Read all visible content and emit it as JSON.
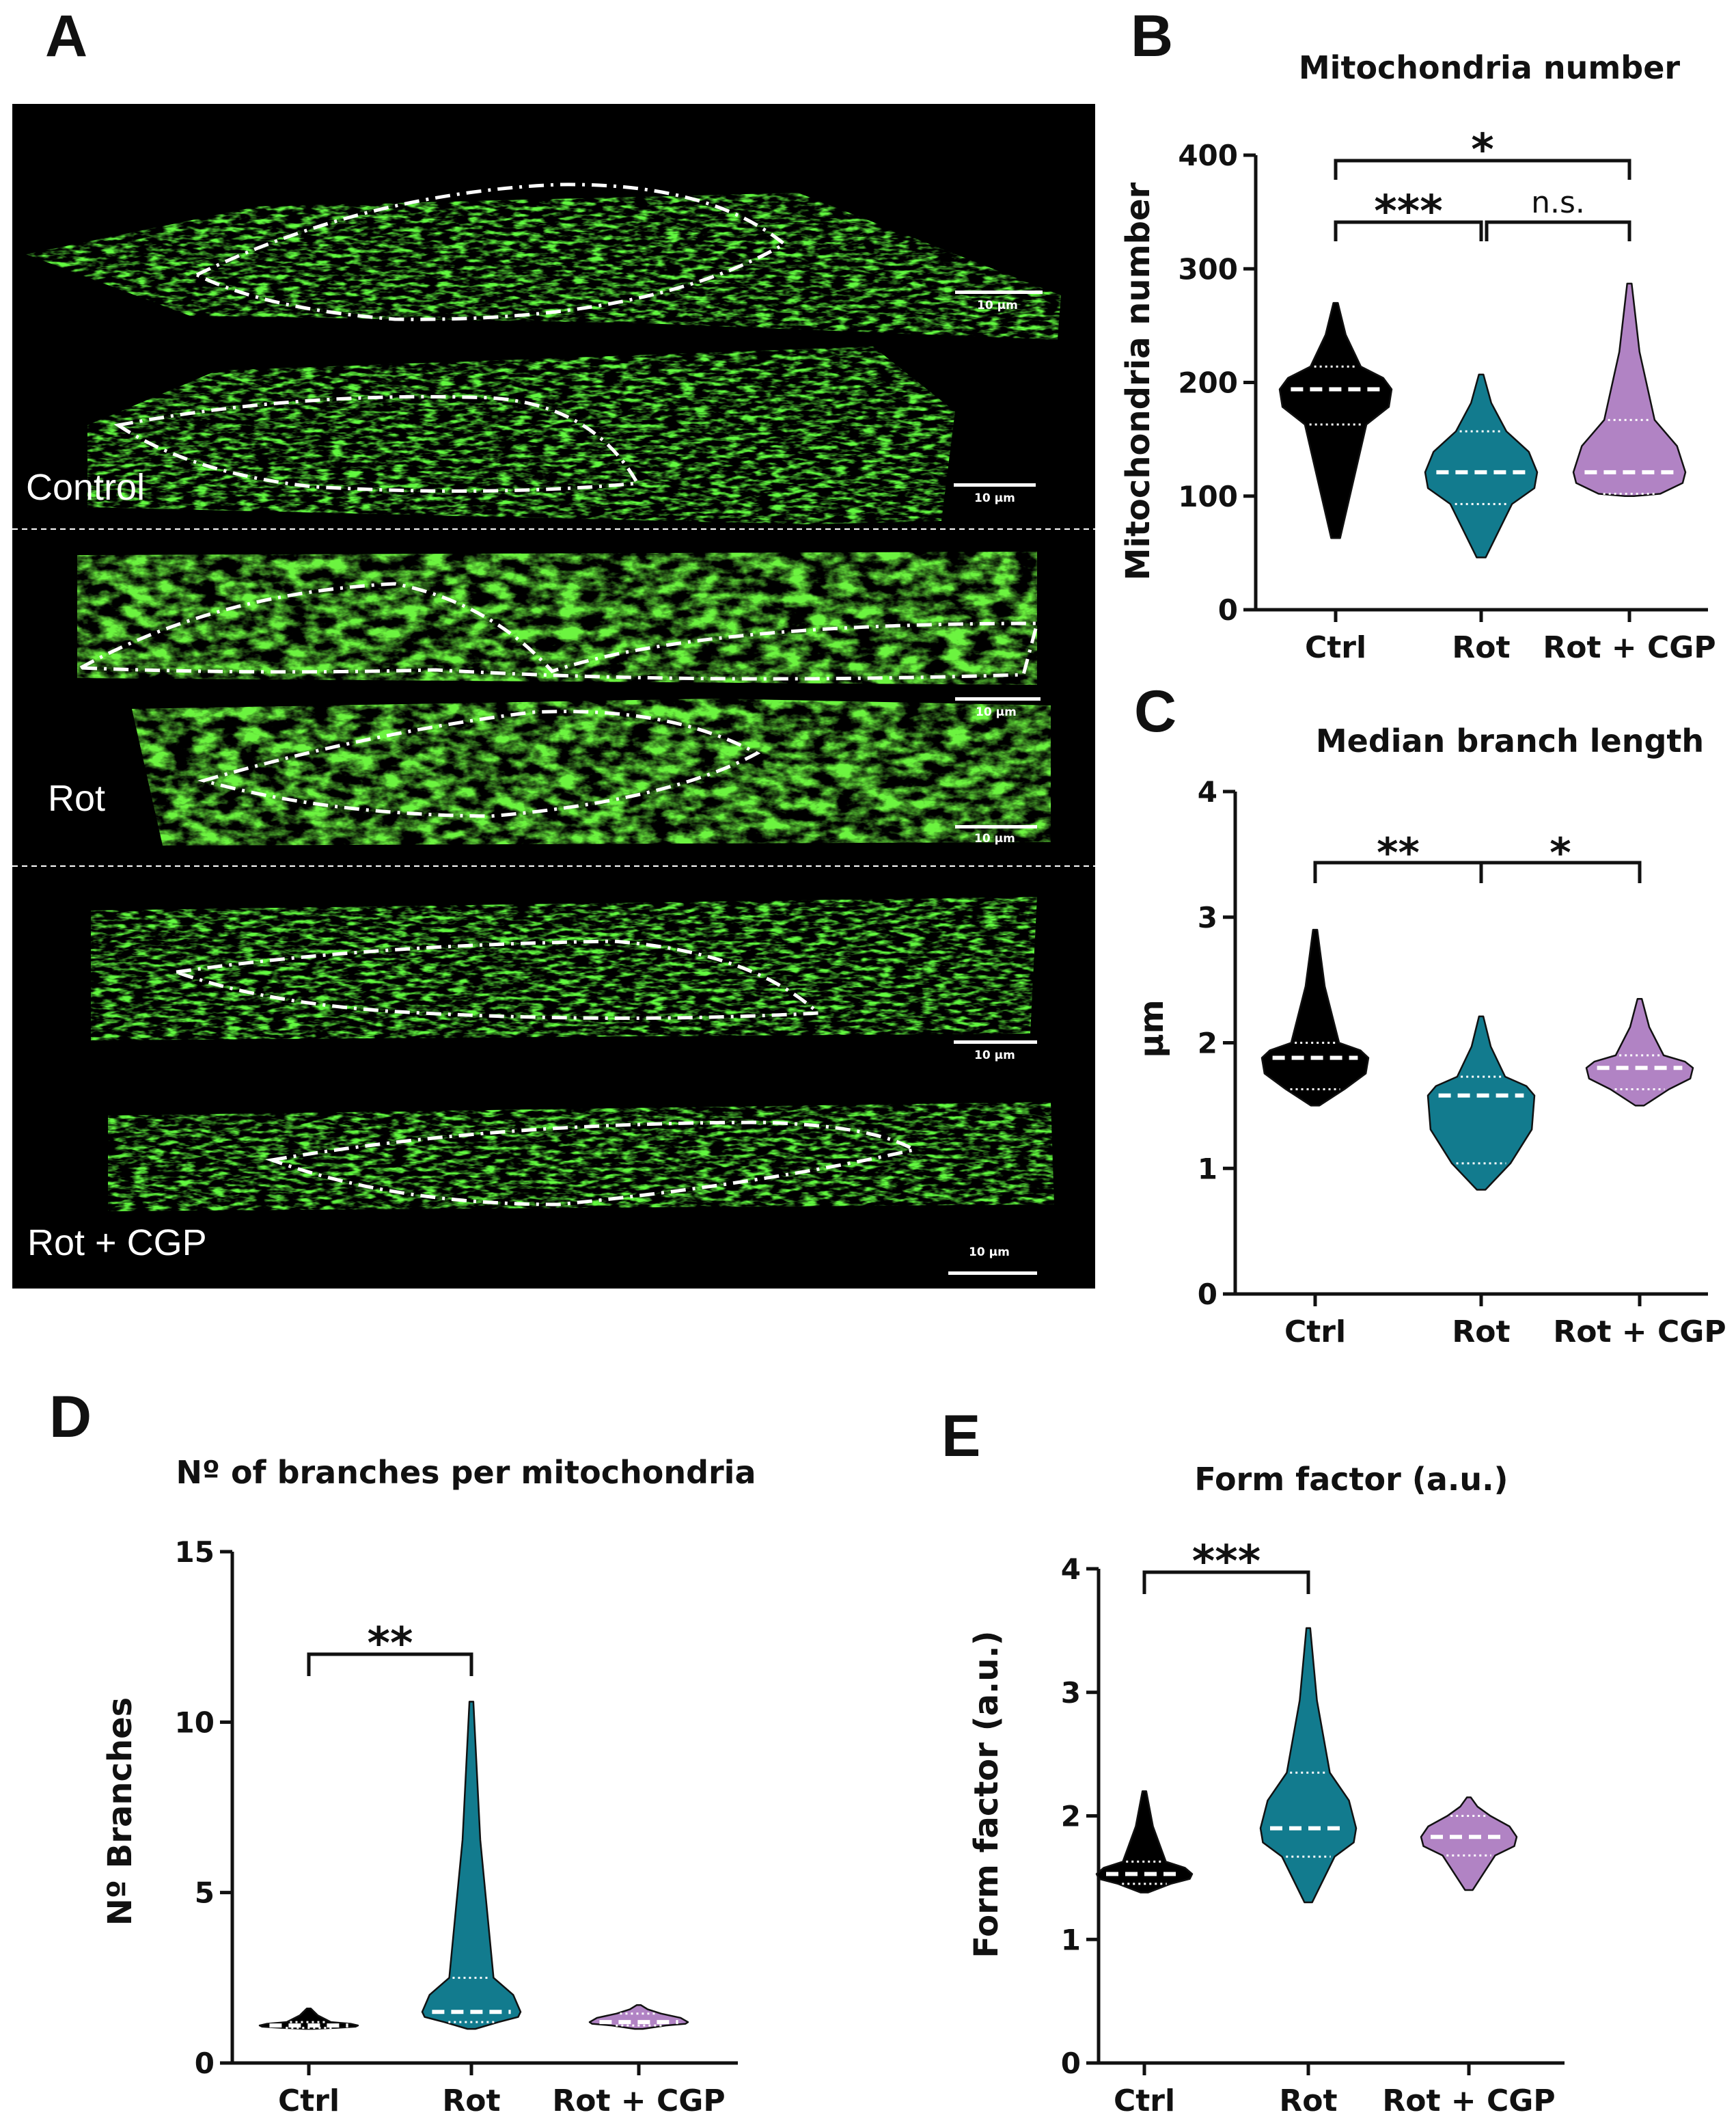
{
  "panels": {
    "A": {
      "letter": "A",
      "rows": [
        {
          "label": "Control",
          "scale_bars": [
            "10 µm",
            "10 µm"
          ]
        },
        {
          "label": "Rot",
          "scale_bars": [
            "10 µm",
            "10 µm"
          ]
        },
        {
          "label": "Rot + CGP",
          "scale_bars": [
            "10 µm",
            "10 µm"
          ]
        }
      ],
      "colors": {
        "background": "#000000",
        "mito": "#22c400",
        "outline": "#ffffff"
      }
    },
    "B": {
      "letter": "B"
    },
    "C": {
      "letter": "C"
    },
    "D": {
      "letter": "D"
    },
    "E": {
      "letter": "E"
    }
  },
  "colors": {
    "ctrl": "#000000",
    "rot": "#127b8e",
    "rot_cgp": "#b183c4"
  },
  "chart_data": [
    {
      "id": "B",
      "type": "violin",
      "title": "Mitochondria number",
      "ylabel": "Mitochondria number",
      "xlabel": "",
      "ylim": [
        0,
        400
      ],
      "yticks": [
        0,
        100,
        200,
        300,
        400
      ],
      "categories": [
        "Ctrl",
        "Rot",
        "Rot + CGP"
      ],
      "series": [
        {
          "name": "Ctrl",
          "min": 63,
          "q1": 163,
          "median": 194,
          "q3": 214,
          "max": 270
        },
        {
          "name": "Rot",
          "min": 46,
          "q1": 93,
          "median": 121,
          "q3": 157,
          "max": 207
        },
        {
          "name": "Rot + CGP",
          "min": 100,
          "q1": 102,
          "median": 121,
          "q3": 167,
          "max": 287
        }
      ],
      "significance": [
        {
          "from": "Ctrl",
          "to": "Rot + CGP",
          "label": "*"
        },
        {
          "from": "Ctrl",
          "to": "Rot",
          "label": "***"
        },
        {
          "from": "Rot",
          "to": "Rot + CGP",
          "label": "n.s."
        }
      ]
    },
    {
      "id": "C",
      "type": "violin",
      "title": "Median branch length",
      "ylabel": "µm",
      "xlabel": "",
      "ylim": [
        0,
        4
      ],
      "yticks": [
        0,
        1,
        2,
        3,
        4
      ],
      "categories": [
        "Ctrl",
        "Rot",
        "Rot + CGP"
      ],
      "series": [
        {
          "name": "Ctrl",
          "min": 1.5,
          "q1": 1.63,
          "median": 1.88,
          "q3": 2.0,
          "max": 2.9
        },
        {
          "name": "Rot",
          "min": 0.83,
          "q1": 1.04,
          "median": 1.58,
          "q3": 1.73,
          "max": 2.21
        },
        {
          "name": "Rot + CGP",
          "min": 1.5,
          "q1": 1.63,
          "median": 1.8,
          "q3": 1.9,
          "max": 2.35
        }
      ],
      "significance": [
        {
          "from": "Ctrl",
          "to": "Rot",
          "label": "**"
        },
        {
          "from": "Rot",
          "to": "Rot + CGP",
          "label": "*"
        }
      ]
    },
    {
      "id": "D",
      "type": "violin",
      "title": "Nº of branches per mitochondria",
      "ylabel": "Nº Branches",
      "xlabel": "",
      "ylim": [
        0,
        15
      ],
      "yticks": [
        0,
        5,
        10,
        15
      ],
      "categories": [
        "Ctrl",
        "Rot",
        "Rot + CGP"
      ],
      "series": [
        {
          "name": "Ctrl",
          "min": 1.0,
          "q1": 1.03,
          "median": 1.1,
          "q3": 1.2,
          "max": 1.6
        },
        {
          "name": "Rot",
          "min": 1.0,
          "q1": 1.2,
          "median": 1.5,
          "q3": 2.5,
          "max": 10.6
        },
        {
          "name": "Rot + CGP",
          "min": 1.0,
          "q1": 1.1,
          "median": 1.2,
          "q3": 1.45,
          "max": 1.7
        }
      ],
      "significance": [
        {
          "from": "Ctrl",
          "to": "Rot",
          "label": "**"
        }
      ]
    },
    {
      "id": "E",
      "type": "violin",
      "title": "Form factor (a.u.)",
      "ylabel": "Form factor (a.u.)",
      "xlabel": "",
      "ylim": [
        0,
        4
      ],
      "yticks": [
        0,
        1,
        2,
        3,
        4
      ],
      "categories": [
        "Ctrl",
        "Rot",
        "Rot + CGP"
      ],
      "series": [
        {
          "name": "Ctrl",
          "min": 1.38,
          "q1": 1.45,
          "median": 1.53,
          "q3": 1.63,
          "max": 2.2
        },
        {
          "name": "Rot",
          "min": 1.3,
          "q1": 1.67,
          "median": 1.9,
          "q3": 2.35,
          "max": 3.52
        },
        {
          "name": "Rot + CGP",
          "min": 1.4,
          "q1": 1.68,
          "median": 1.83,
          "q3": 2.0,
          "max": 2.15
        }
      ],
      "significance": [
        {
          "from": "Ctrl",
          "to": "Rot",
          "label": "***"
        }
      ]
    }
  ]
}
